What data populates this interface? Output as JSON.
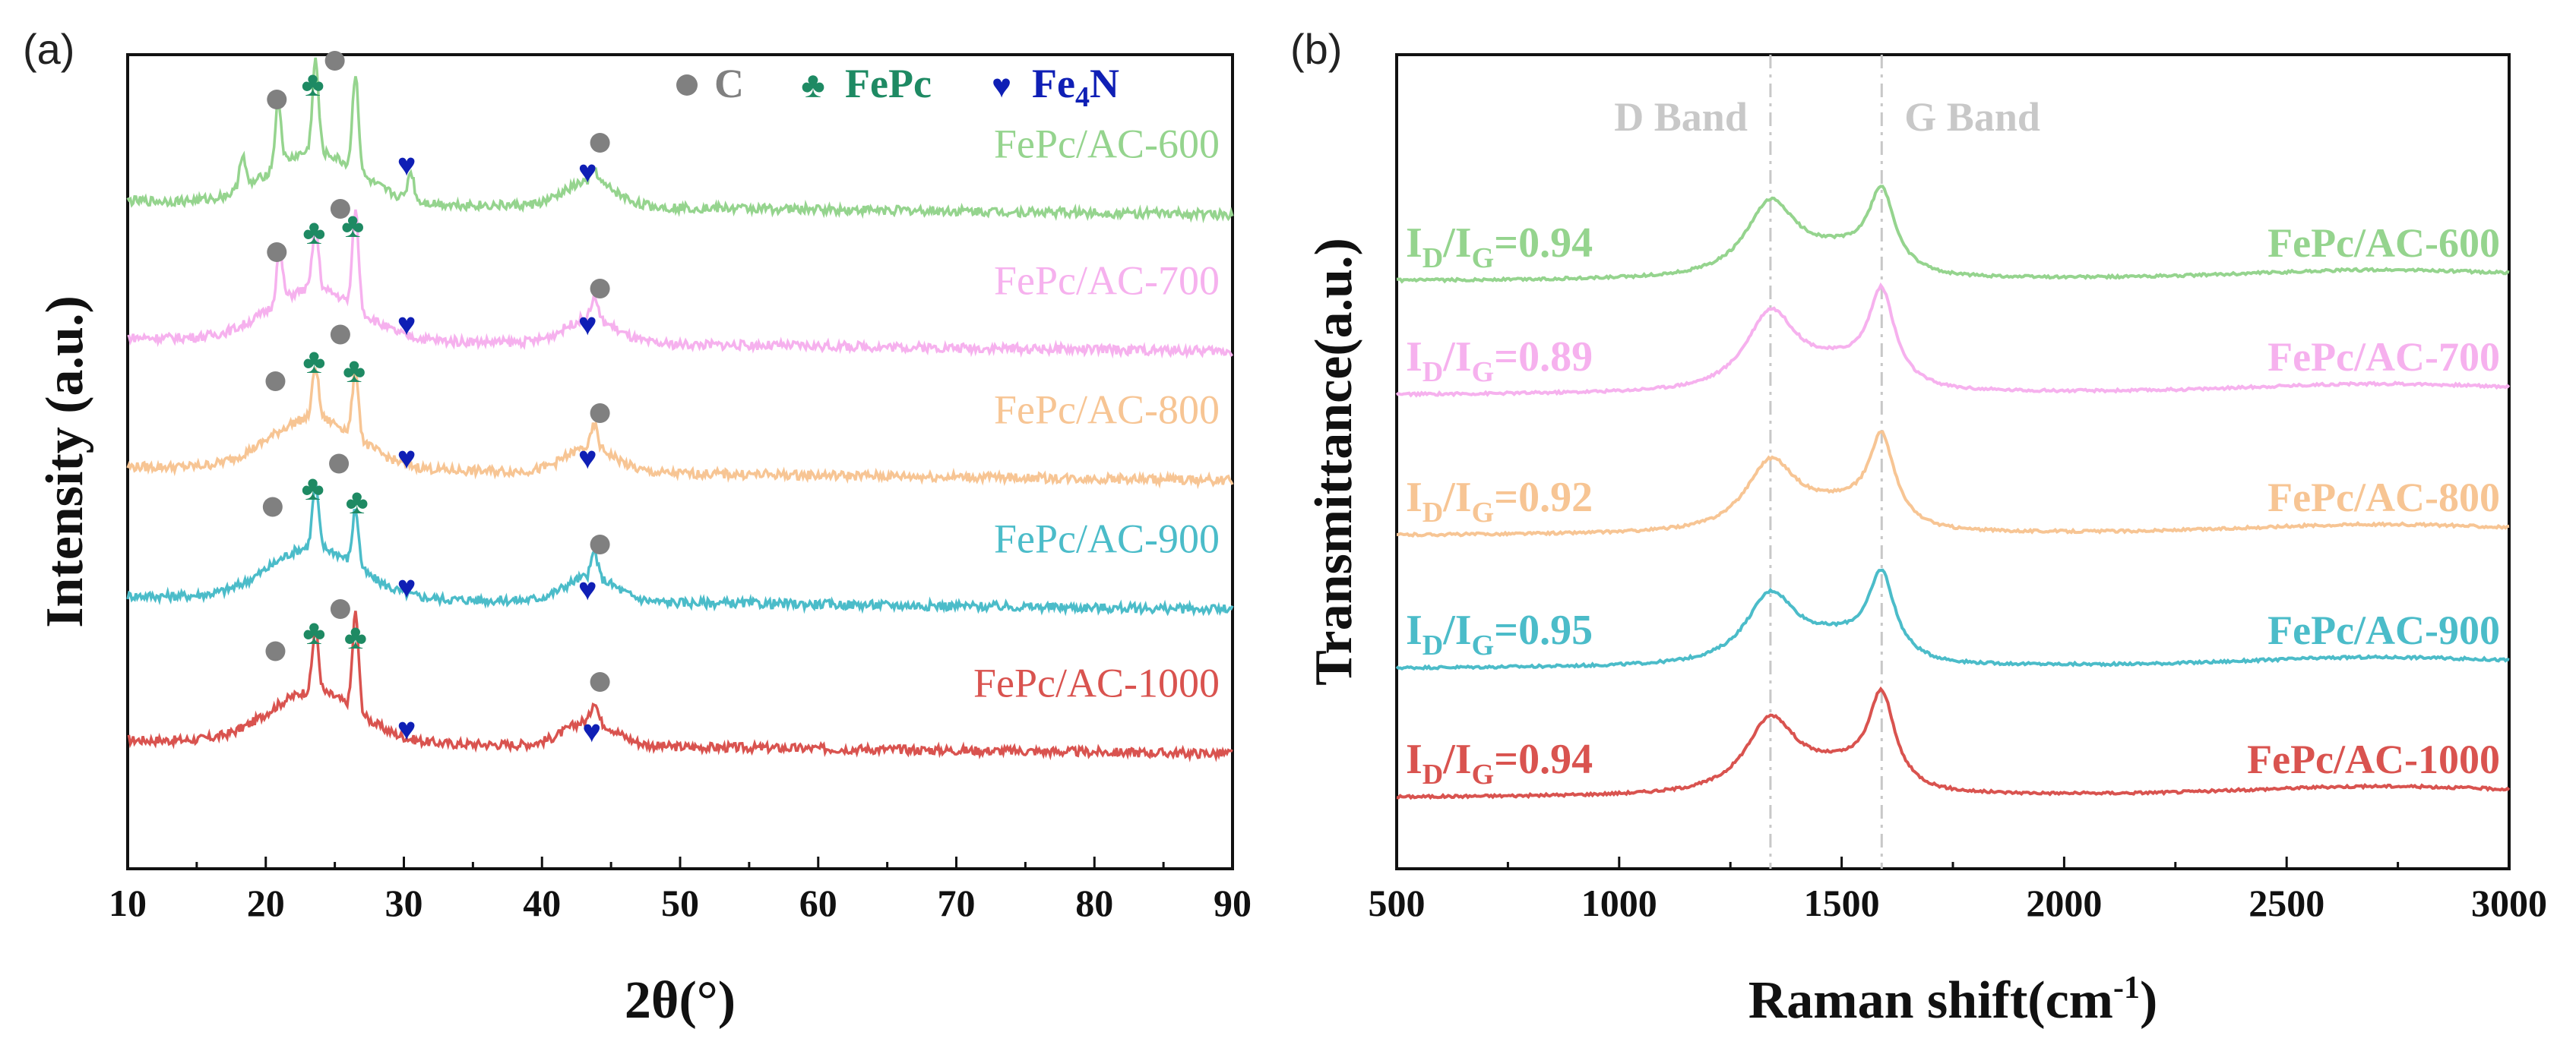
{
  "panels": {
    "a": {
      "tag": "(a)",
      "chart_data": {
        "type": "line",
        "title": "",
        "xlabel": "2θ(°)",
        "ylabel": "Intensity (a.u.)",
        "xlim": [
          10,
          90
        ],
        "xticks": [
          10,
          20,
          30,
          40,
          50,
          60,
          70,
          80,
          90
        ],
        "yticks_shown": false,
        "series": [
          {
            "name": "FePc/AC-1000",
            "color": "#d9534f",
            "offset": 4,
            "peaks": [
              {
                "x": 23.6,
                "h": 0.55
              },
              {
                "x": 26.5,
                "h": 0.85
              },
              {
                "x": 43.8,
                "h": 0.18
              }
            ],
            "markers": [
              {
                "type": "C",
                "x": 20.7,
                "y": 0.95
              },
              {
                "type": "FePc",
                "x": 23.5,
                "y": 1.12
              },
              {
                "type": "C",
                "x": 25.4,
                "y": 1.32
              },
              {
                "type": "FePc",
                "x": 26.5,
                "y": 1.08
              },
              {
                "type": "Fe4N",
                "x": 30.2,
                "y": 0.28
              },
              {
                "type": "C",
                "x": 44.2,
                "y": 0.68
              },
              {
                "type": "Fe4N",
                "x": 43.6,
                "y": 0.26
              }
            ]
          },
          {
            "name": "FePc/AC-900",
            "color": "#4bbcc9",
            "offset": 3,
            "peaks": [
              {
                "x": 23.6,
                "h": 0.55
              },
              {
                "x": 26.5,
                "h": 0.5
              },
              {
                "x": 43.8,
                "h": 0.22
              }
            ],
            "markers": [
              {
                "type": "C",
                "x": 20.5,
                "y": 0.95
              },
              {
                "type": "FePc",
                "x": 23.4,
                "y": 1.12
              },
              {
                "type": "C",
                "x": 25.3,
                "y": 1.33
              },
              {
                "type": "FePc",
                "x": 26.6,
                "y": 1.0
              },
              {
                "type": "Fe4N",
                "x": 30.2,
                "y": 0.26
              },
              {
                "type": "C",
                "x": 44.2,
                "y": 0.62
              },
              {
                "type": "Fe4N",
                "x": 43.3,
                "y": 0.24
              }
            ]
          },
          {
            "name": "FePc/AC-800",
            "color": "#f7c594",
            "offset": 2,
            "peaks": [
              {
                "x": 23.6,
                "h": 0.45
              },
              {
                "x": 26.5,
                "h": 0.6
              },
              {
                "x": 43.8,
                "h": 0.2
              }
            ],
            "markers": [
              {
                "type": "C",
                "x": 20.7,
                "y": 0.92
              },
              {
                "type": "FePc",
                "x": 23.5,
                "y": 1.1
              },
              {
                "type": "C",
                "x": 25.4,
                "y": 1.33
              },
              {
                "type": "FePc",
                "x": 26.4,
                "y": 1.02
              },
              {
                "type": "Fe4N",
                "x": 30.2,
                "y": 0.26
              },
              {
                "type": "C",
                "x": 44.2,
                "y": 0.64
              },
              {
                "type": "Fe4N",
                "x": 43.3,
                "y": 0.26
              }
            ]
          },
          {
            "name": "FePc/AC-700",
            "color": "#f6b1ee",
            "offset": 1,
            "peaks": [
              {
                "x": 21.0,
                "h": 0.45
              },
              {
                "x": 23.6,
                "h": 0.55
              },
              {
                "x": 26.5,
                "h": 0.85
              },
              {
                "x": 43.8,
                "h": 0.2
              }
            ],
            "markers": [
              {
                "type": "C",
                "x": 20.8,
                "y": 0.92
              },
              {
                "type": "FePc",
                "x": 23.5,
                "y": 1.1
              },
              {
                "type": "C",
                "x": 25.4,
                "y": 1.3
              },
              {
                "type": "FePc",
                "x": 26.3,
                "y": 1.16
              },
              {
                "type": "Fe4N",
                "x": 30.2,
                "y": 0.3
              },
              {
                "type": "C",
                "x": 44.2,
                "y": 0.6
              },
              {
                "type": "Fe4N",
                "x": 43.3,
                "y": 0.3
              }
            ]
          },
          {
            "name": "FePc/AC-600",
            "color": "#95d48e",
            "offset": 0,
            "peaks": [
              {
                "x": 18.3,
                "h": 0.3
              },
              {
                "x": 20.9,
                "h": 0.55
              },
              {
                "x": 23.6,
                "h": 0.8
              },
              {
                "x": 26.5,
                "h": 0.85
              },
              {
                "x": 30.5,
                "h": 0.25
              },
              {
                "x": 43.8,
                "h": 0.12
              }
            ],
            "markers": [
              {
                "type": "C",
                "x": 20.8,
                "y": 1.06
              },
              {
                "type": "FePc",
                "x": 23.4,
                "y": 1.2
              },
              {
                "type": "C",
                "x": 25.0,
                "y": 1.4
              },
              {
                "type": "Fe4N",
                "x": 30.2,
                "y": 0.5
              },
              {
                "type": "C",
                "x": 44.2,
                "y": 0.68
              },
              {
                "type": "Fe4N",
                "x": 43.3,
                "y": 0.44
              }
            ]
          }
        ],
        "legend": [
          {
            "symbol": "circle",
            "label": "C",
            "color": "#808080"
          },
          {
            "symbol": "club",
            "label": "FePc",
            "color": "#1e8a63"
          },
          {
            "symbol": "heart",
            "label": "Fe",
            "label_sub": "4",
            "label_tail": "N",
            "color": "#0f1fb5"
          }
        ],
        "legend_position": "top-right"
      }
    },
    "b": {
      "tag": "(b)",
      "chart_data": {
        "type": "line",
        "title": "",
        "xlabel": "Raman shift(cm",
        "xlabel_sup": "-1",
        "xlabel_tail": ")",
        "ylabel": "Transmittance(a.u.)",
        "xlim": [
          500,
          3000
        ],
        "xticks": [
          500,
          1000,
          1500,
          2000,
          2500,
          3000
        ],
        "yticks_shown": false,
        "bands": [
          {
            "name": "D Band",
            "x": 1340
          },
          {
            "name": "G Band",
            "x": 1590
          }
        ],
        "series": [
          {
            "name": "FePc/AC-1000",
            "color": "#d9534f",
            "ratio_value": "=0.94",
            "offset": 4,
            "d_height": 0.85,
            "g_height": 1.0
          },
          {
            "name": "FePc/AC-900",
            "color": "#4bbcc9",
            "ratio_value": "=0.95",
            "offset": 3,
            "d_height": 0.8,
            "g_height": 0.9
          },
          {
            "name": "FePc/AC-800",
            "color": "#f7c594",
            "ratio_value": "=0.92",
            "offset": 2,
            "d_height": 0.8,
            "g_height": 0.95
          },
          {
            "name": "FePc/AC-700",
            "color": "#f6b1ee",
            "ratio_value": "=0.89",
            "offset": 1,
            "d_height": 0.9,
            "g_height": 1.0
          },
          {
            "name": "FePc/AC-600",
            "color": "#95d48e",
            "ratio_value": "=0.94",
            "offset": 0,
            "d_height": 0.85,
            "g_height": 0.85
          }
        ],
        "ratio_prefix": "I",
        "ratio_sub_d": "D",
        "ratio_sub_g": "G"
      }
    }
  }
}
